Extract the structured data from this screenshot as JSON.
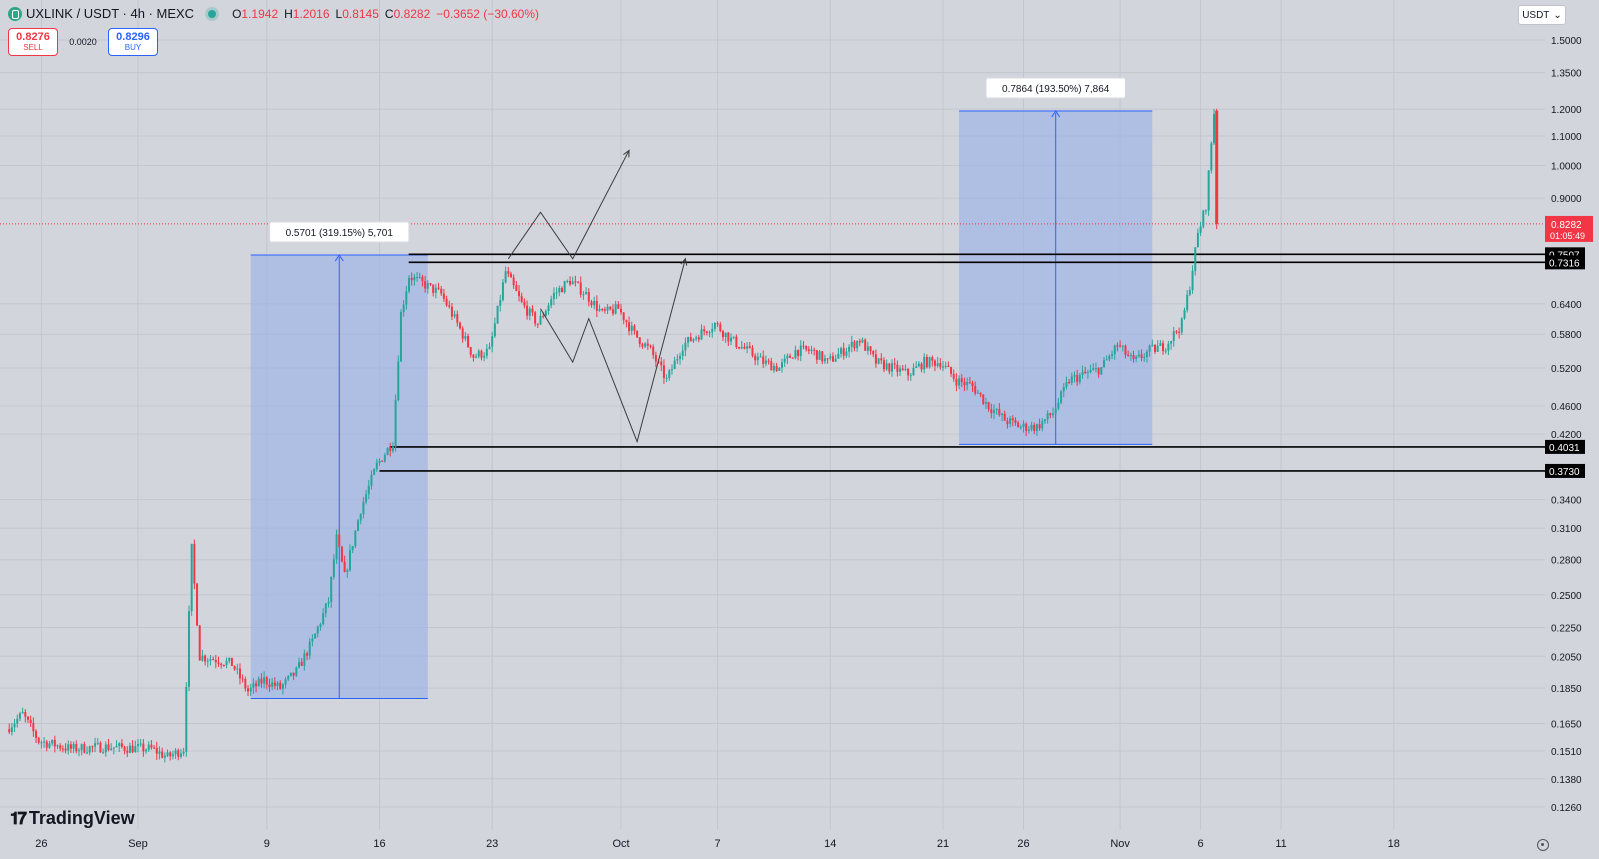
{
  "header": {
    "symbol_title": "UXLINK / USDT · 4h · MEXC",
    "ohlc": [
      {
        "key": "O",
        "value": "1.1942"
      },
      {
        "key": "H",
        "value": "1.2016"
      },
      {
        "key": "L",
        "value": "0.8145"
      },
      {
        "key": "C",
        "value": "0.8282"
      }
    ],
    "change": "−0.3652 (−30.60%)"
  },
  "trade": {
    "sell_price": "0.8276",
    "sell_label": "SELL",
    "spread": "0.0020",
    "buy_price": "0.8296",
    "buy_label": "BUY"
  },
  "currency_selector": "USDT",
  "logo_text": "TradingView",
  "colors": {
    "background": "#d3d5dd",
    "up": "#26a69a",
    "down": "#f23645",
    "range_fill": "#9fb3e6",
    "range_line": "#2962ff",
    "level_line": "#000000"
  },
  "chart_data": {
    "type": "candlestick",
    "scale": "log",
    "ylim": [
      0.12,
      1.55
    ],
    "y_ticks": [
      1.5,
      1.35,
      1.2,
      1.1,
      1.0,
      0.9,
      0.64,
      0.58,
      0.52,
      0.46,
      0.42,
      0.34,
      0.31,
      0.28,
      0.25,
      0.225,
      0.205,
      0.185,
      0.165,
      0.151,
      0.138,
      0.126
    ],
    "y_tick_labels": [
      "1.5000",
      "1.3500",
      "1.2000",
      "1.1000",
      "1.0000",
      "0.9000",
      "0.6400",
      "0.5800",
      "0.5200",
      "0.4600",
      "0.4200",
      "0.3400",
      "0.3100",
      "0.2800",
      "0.2500",
      "0.2250",
      "0.2050",
      "0.1850",
      "0.1650",
      "0.1510",
      "0.1380",
      "0.1260"
    ],
    "x_range": [
      "2024-08-24",
      "2024-11-23"
    ],
    "x_ticks": [
      {
        "date": "2024-08-26",
        "label": "26"
      },
      {
        "date": "2024-09-01",
        "label": "Sep"
      },
      {
        "date": "2024-09-09",
        "label": "9"
      },
      {
        "date": "2024-09-16",
        "label": "16"
      },
      {
        "date": "2024-09-23",
        "label": "23"
      },
      {
        "date": "2024-10-01",
        "label": "Oct"
      },
      {
        "date": "2024-10-07",
        "label": "7"
      },
      {
        "date": "2024-10-14",
        "label": "14"
      },
      {
        "date": "2024-10-21",
        "label": "21"
      },
      {
        "date": "2024-10-26",
        "label": "26"
      },
      {
        "date": "2024-11-01",
        "label": "Nov"
      },
      {
        "date": "2024-11-06",
        "label": "6"
      },
      {
        "date": "2024-11-11",
        "label": "11"
      },
      {
        "date": "2024-11-18",
        "label": "18"
      }
    ],
    "price_path": [
      [
        "2024-08-24",
        0.162
      ],
      [
        "2024-08-25",
        0.17
      ],
      [
        "2024-08-26",
        0.156
      ],
      [
        "2024-08-28",
        0.152
      ],
      [
        "2024-08-30",
        0.153
      ],
      [
        "2024-09-02",
        0.152
      ],
      [
        "2024-09-03",
        0.148
      ],
      [
        "2024-09-04",
        0.152
      ],
      [
        "2024-09-04.5",
        0.29
      ],
      [
        "2024-09-05",
        0.205
      ],
      [
        "2024-09-06",
        0.203
      ],
      [
        "2024-09-07",
        0.2
      ],
      [
        "2024-09-08",
        0.183
      ],
      [
        "2024-09-09",
        0.19
      ],
      [
        "2024-09-10",
        0.185
      ],
      [
        "2024-09-11",
        0.195
      ],
      [
        "2024-09-12",
        0.215
      ],
      [
        "2024-09-13",
        0.245
      ],
      [
        "2024-09-13.5",
        0.3
      ],
      [
        "2024-09-14",
        0.265
      ],
      [
        "2024-09-15",
        0.33
      ],
      [
        "2024-09-16",
        0.38
      ],
      [
        "2024-09-17",
        0.41
      ],
      [
        "2024-09-17.5",
        0.62
      ],
      [
        "2024-09-18",
        0.7
      ],
      [
        "2024-09-19",
        0.68
      ],
      [
        "2024-09-20",
        0.66
      ],
      [
        "2024-09-21",
        0.6
      ],
      [
        "2024-09-22",
        0.54
      ],
      [
        "2024-09-23",
        0.55
      ],
      [
        "2024-09-24",
        0.71
      ],
      [
        "2024-09-25",
        0.64
      ],
      [
        "2024-09-26",
        0.6
      ],
      [
        "2024-09-27",
        0.66
      ],
      [
        "2024-09-28",
        0.69
      ],
      [
        "2024-09-29",
        0.66
      ],
      [
        "2024-09-30",
        0.62
      ],
      [
        "2024-10-01",
        0.63
      ],
      [
        "2024-10-02",
        0.58
      ],
      [
        "2024-10-03",
        0.55
      ],
      [
        "2024-10-04",
        0.5
      ],
      [
        "2024-10-05",
        0.56
      ],
      [
        "2024-10-06",
        0.58
      ],
      [
        "2024-10-07",
        0.6
      ],
      [
        "2024-10-08",
        0.57
      ],
      [
        "2024-10-09",
        0.55
      ],
      [
        "2024-10-10",
        0.53
      ],
      [
        "2024-10-11",
        0.52
      ],
      [
        "2024-10-12",
        0.55
      ],
      [
        "2024-10-13",
        0.55
      ],
      [
        "2024-10-14",
        0.53
      ],
      [
        "2024-10-15",
        0.55
      ],
      [
        "2024-10-16",
        0.57
      ],
      [
        "2024-10-17",
        0.53
      ],
      [
        "2024-10-18",
        0.52
      ],
      [
        "2024-10-19",
        0.51
      ],
      [
        "2024-10-20",
        0.53
      ],
      [
        "2024-10-21",
        0.53
      ],
      [
        "2024-10-22",
        0.5
      ],
      [
        "2024-10-23",
        0.49
      ],
      [
        "2024-10-24",
        0.46
      ],
      [
        "2024-10-25",
        0.44
      ],
      [
        "2024-10-26",
        0.43
      ],
      [
        "2024-10-27",
        0.43
      ],
      [
        "2024-10-28",
        0.45
      ],
      [
        "2024-10-29",
        0.5
      ],
      [
        "2024-10-30",
        0.51
      ],
      [
        "2024-10-31",
        0.52
      ],
      [
        "2024-11-01",
        0.56
      ],
      [
        "2024-11-02",
        0.53
      ],
      [
        "2024-11-03",
        0.55
      ],
      [
        "2024-11-04",
        0.56
      ],
      [
        "2024-11-05",
        0.6
      ],
      [
        "2024-11-05.5",
        0.68
      ],
      [
        "2024-11-06",
        0.8
      ],
      [
        "2024-11-06.5",
        0.88
      ],
      [
        "2024-11-07",
        1.19
      ]
    ],
    "last_candle": {
      "open": 1.1942,
      "high": 1.2016,
      "low": 0.8145,
      "close": 0.8282
    },
    "current_price": {
      "value": 0.8282,
      "label": "0.8282",
      "countdown": "01:05:49"
    },
    "horizontal_levels": [
      {
        "value": 0.7507,
        "label": "0.7507"
      },
      {
        "value": 0.7316,
        "label": "0.7316"
      },
      {
        "value": 0.4031,
        "label": "0.4031"
      },
      {
        "value": 0.373,
        "label": "0.3730"
      }
    ],
    "price_ranges": [
      {
        "from_date": "2024-09-08",
        "to_date": "2024-09-19",
        "low": 0.1789,
        "high": 0.749,
        "label": "0.5701 (319.15%) 5,701"
      },
      {
        "from_date": "2024-10-22",
        "to_date": "2024-11-03",
        "low": 0.4064,
        "high": 1.1928,
        "label": "0.7864 (193.50%) 7,864"
      }
    ],
    "drawings": [
      {
        "type": "zigzag",
        "points": [
          [
            "2024-09-24",
            0.74
          ],
          [
            "2024-09-26",
            0.86
          ],
          [
            "2024-09-28",
            0.74
          ],
          [
            "2024-10-01.5",
            1.05
          ]
        ]
      },
      {
        "type": "zigzag",
        "points": [
          [
            "2024-09-26",
            0.63
          ],
          [
            "2024-09-28",
            0.53
          ],
          [
            "2024-09-29",
            0.61
          ],
          [
            "2024-10-02",
            0.41
          ],
          [
            "2024-10-05",
            0.74
          ]
        ]
      }
    ]
  }
}
